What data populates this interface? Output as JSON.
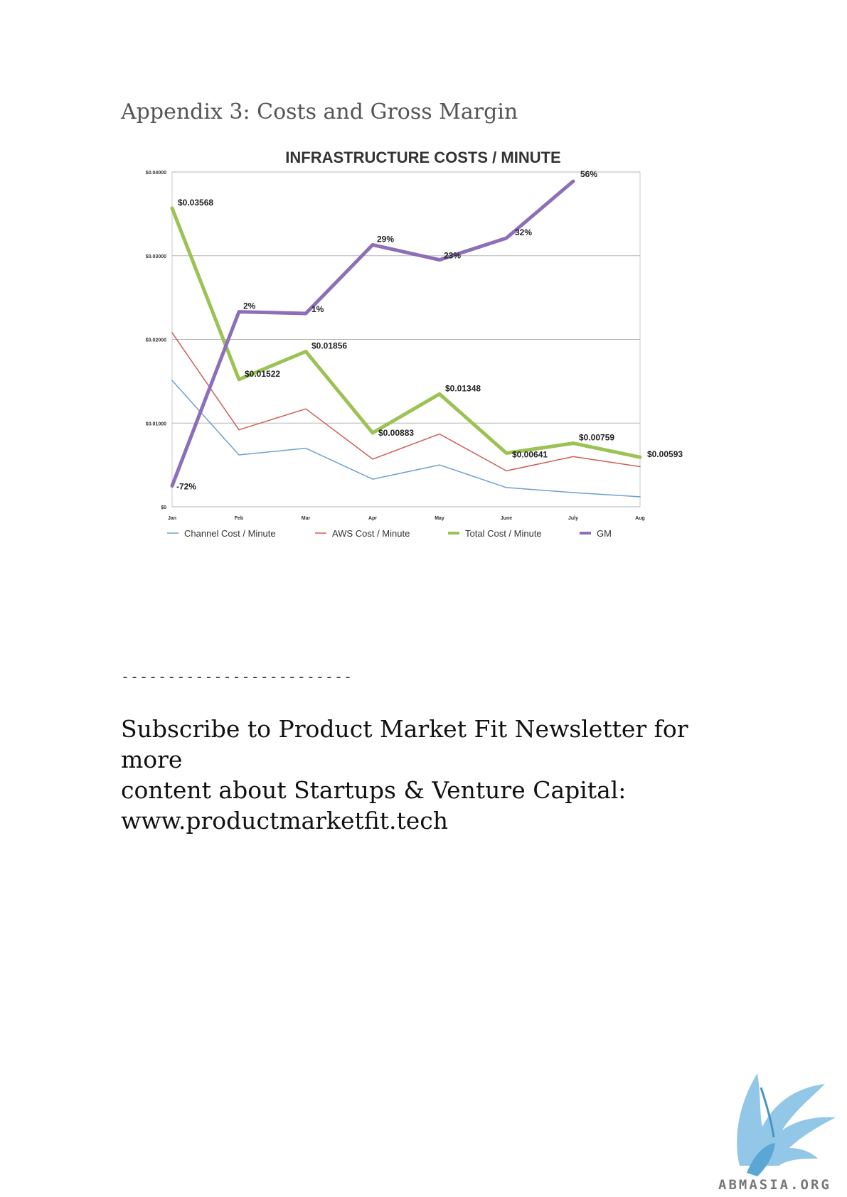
{
  "page": {
    "heading": "Appendix 3: Costs and Gross Margin",
    "divider": "-------------------------",
    "subscribe_lines": [
      "Subscribe to Product Market Fit Newsletter for more",
      "content about Startups & Venture Capital:",
      "www.productmarketfit.tech"
    ],
    "logo_text": "ABMASIA.ORG"
  },
  "chart_data": {
    "type": "line",
    "title": "Infrastructure Costs / Minute",
    "categories": [
      "Jan",
      "Feb",
      "Mar",
      "Apr",
      "May",
      "June",
      "July",
      "Aug"
    ],
    "y_ticks": [
      "$0",
      "$0.01000",
      "$0.02000",
      "$0.03000",
      "$0.04000"
    ],
    "ylim": [
      0,
      0.04
    ],
    "grid": true,
    "legend_position": "bottom",
    "series": [
      {
        "name": "Channel Cost / Minute",
        "color": "#6f9fd0",
        "values": [
          0.0151,
          0.0062,
          0.007,
          0.0033,
          0.005,
          0.0023,
          0.0017,
          0.0012
        ]
      },
      {
        "name": "AWS Cost / Minute",
        "color": "#cd5e55",
        "values": [
          0.0208,
          0.0092,
          0.0117,
          0.0057,
          0.0087,
          0.0043,
          0.006,
          0.0048
        ]
      },
      {
        "name": "Total Cost / Minute",
        "color": "#9cc254",
        "values": [
          0.03568,
          0.01522,
          0.01856,
          0.00883,
          0.01348,
          0.00641,
          0.00759,
          0.00593
        ],
        "labels": [
          "$0.03568",
          "$0.01522",
          "$0.01856",
          "$0.00883",
          "$0.01348",
          "$0.00641",
          "$0.00759",
          "$0.00593"
        ]
      },
      {
        "name": "GM",
        "color": "#8c6fb8",
        "values": [
          0.0025,
          0.0233,
          0.0231,
          0.0313,
          0.0295,
          0.0321,
          0.0389,
          null
        ],
        "labels": [
          "-72%",
          "2%",
          "1%",
          "29%",
          "23%",
          "32%",
          "56%",
          null
        ]
      }
    ]
  }
}
